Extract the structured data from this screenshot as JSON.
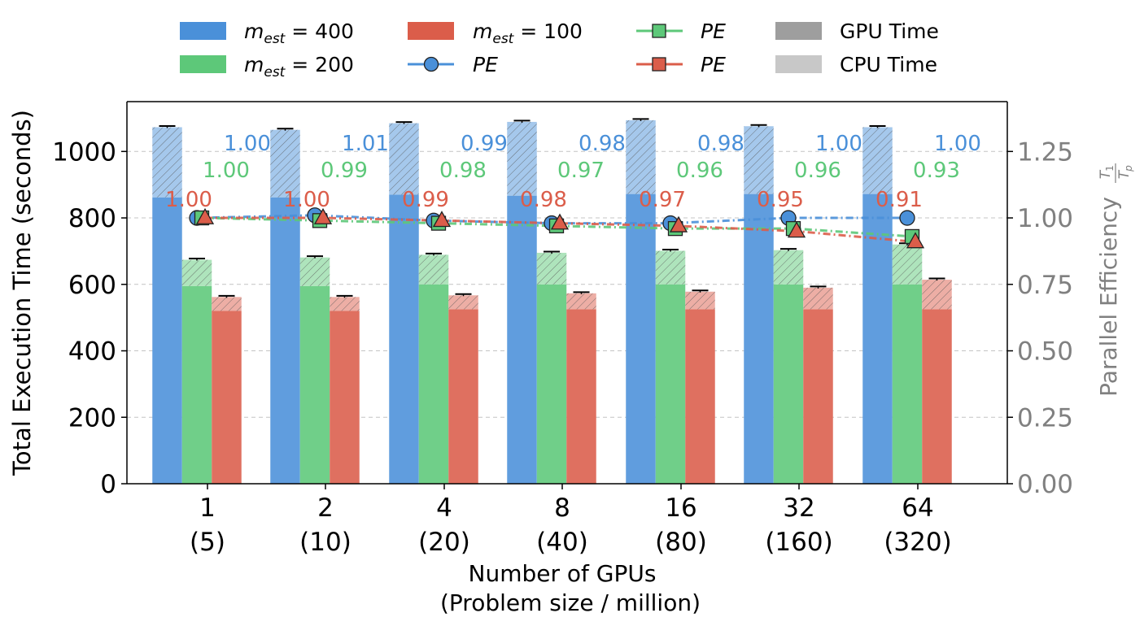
{
  "chart_data": {
    "type": "bar",
    "categories": [
      "1",
      "2",
      "4",
      "8",
      "16",
      "32",
      "64"
    ],
    "category_sublabels": [
      "(5)",
      "(10)",
      "(20)",
      "(40)",
      "(80)",
      "(160)",
      "(320)"
    ],
    "xlabel_line1": "Number of GPUs",
    "xlabel_line2": "(Problem size / million)",
    "ylabel": "Total Execution Time (seconds)",
    "ylabel_right_text": "Parallel Efficiency",
    "ylabel_right_frac_num": "T",
    "ylabel_right_frac_num_sub": "1",
    "ylabel_right_frac_den": "T",
    "ylabel_right_frac_den_sub": "p",
    "ylim": [
      0,
      1150
    ],
    "yticks": [
      "0",
      "200",
      "400",
      "600",
      "800",
      "1000"
    ],
    "ytick_values": [
      0,
      200,
      400,
      600,
      800,
      1000
    ],
    "ylim_right": [
      0,
      1.4375
    ],
    "yticks_right": [
      "0.00",
      "0.25",
      "0.50",
      "0.75",
      "1.00",
      "1.25"
    ],
    "ytick_right_values": [
      0,
      0.25,
      0.5,
      0.75,
      1.0,
      1.25
    ],
    "grid": true,
    "series": [
      {
        "name": "m_est = 400",
        "color": "#4a90d9",
        "gpu_time": [
          862,
          862,
          870,
          867,
          872,
          872,
          872
        ],
        "total_time": [
          1073,
          1065,
          1085,
          1089,
          1094,
          1076,
          1073
        ],
        "pe": [
          1.0,
          1.01,
          0.99,
          0.98,
          0.98,
          1.0,
          1.0
        ],
        "pe_labels": [
          "1.00",
          "1.01",
          "0.99",
          "0.98",
          "0.98",
          "1.00",
          "1.00"
        ],
        "marker": "circle"
      },
      {
        "name": "m_est = 200",
        "color": "#5dc879",
        "gpu_time": [
          595,
          595,
          600,
          600,
          600,
          600,
          600
        ],
        "total_time": [
          674,
          681,
          689,
          695,
          701,
          703,
          720
        ],
        "pe": [
          1.0,
          0.99,
          0.98,
          0.97,
          0.96,
          0.96,
          0.93
        ],
        "pe_labels": [
          "1.00",
          "0.99",
          "0.98",
          "0.97",
          "0.96",
          "0.96",
          "0.93"
        ],
        "marker": "square"
      },
      {
        "name": "m_est = 100",
        "color": "#db5d4a",
        "gpu_time": [
          520,
          520,
          525,
          525,
          525,
          525,
          525
        ],
        "total_time": [
          562,
          562,
          567,
          573,
          578,
          590,
          614
        ],
        "pe": [
          1.0,
          1.0,
          0.99,
          0.98,
          0.97,
          0.95,
          0.91
        ],
        "pe_labels": [
          "1.00",
          "1.00",
          "0.99",
          "0.98",
          "0.97",
          "0.95",
          "0.91"
        ],
        "marker": "triangle"
      }
    ],
    "legend": {
      "placement": "top",
      "m_label": "m",
      "est_label": "est",
      "values": [
        "400",
        "200",
        "100"
      ],
      "eq": " = ",
      "pe_label": "PE",
      "gpu_label": "GPU Time",
      "cpu_label": "CPU Time",
      "gpu_color": "#9e9e9e",
      "cpu_color": "#c8c8c8"
    },
    "right_axis_color": "#808080"
  }
}
